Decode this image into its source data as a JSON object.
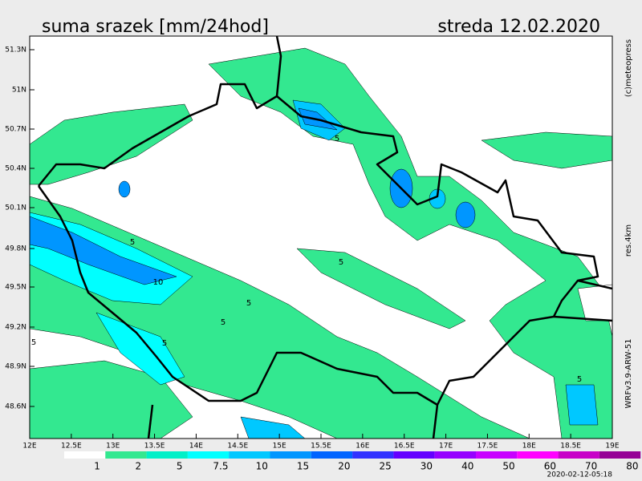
{
  "header": {
    "title": "suma srazek [mm/24hod]",
    "date": "streda 12.02.2020"
  },
  "side": {
    "credit": "(c)meteopress",
    "resolution": "res.4km",
    "model": "WRFv3.9-ARW-51"
  },
  "axes": {
    "lat": [
      "51.3N",
      "51N",
      "50.7N",
      "50.4N",
      "50.1N",
      "49.8N",
      "49.5N",
      "49.2N",
      "48.9N",
      "48.6N"
    ],
    "lon": [
      "12E",
      "12.5E",
      "13E",
      "13.5E",
      "14E",
      "14.5E",
      "15E",
      "15.5E",
      "16E",
      "16.5E",
      "17E",
      "17.5E",
      "18E",
      "18.5E",
      "19E"
    ]
  },
  "map": {
    "contour_labels": [
      "5",
      "5",
      "10",
      "5",
      "5",
      "5",
      "5",
      "5",
      "5"
    ]
  },
  "legend": {
    "labels": [
      "1",
      "2",
      "5",
      "7.5",
      "10",
      "15",
      "20",
      "25",
      "30",
      "40",
      "50",
      "60",
      "70",
      "80"
    ],
    "colors": [
      "#ffffff",
      "#33e890",
      "#00f0c8",
      "#00ffff",
      "#00c8ff",
      "#0096ff",
      "#0064ff",
      "#3232ff",
      "#6400ff",
      "#9600ff",
      "#c800ff",
      "#ff00ff",
      "#c800c8",
      "#960096"
    ]
  },
  "timestamp": "2020-02-12-05:18"
}
